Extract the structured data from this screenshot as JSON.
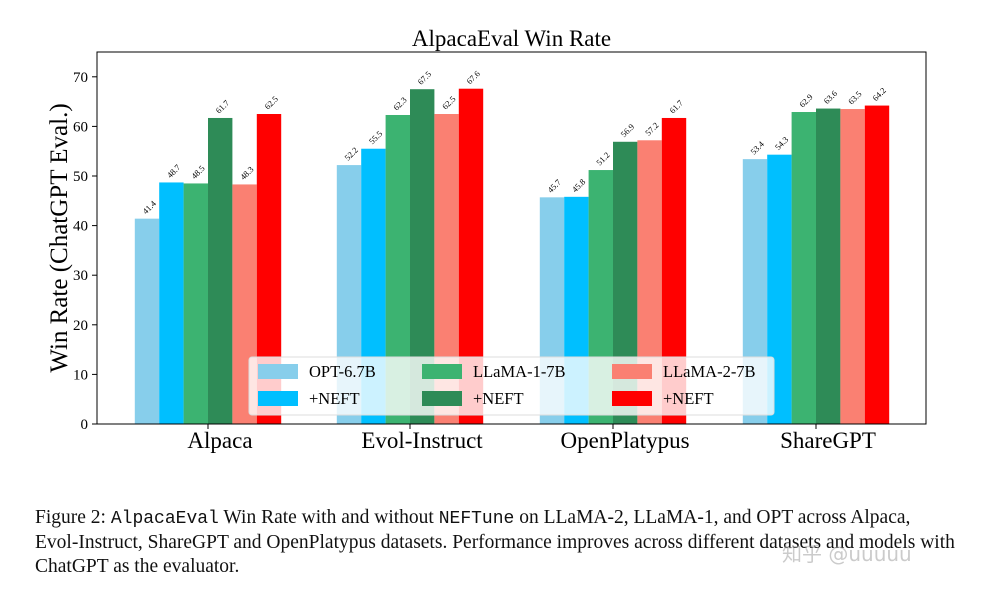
{
  "chart_data": {
    "type": "bar",
    "title": "AlpacaEval Win Rate",
    "xlabel": "",
    "ylabel": "Win Rate (ChatGPT Eval.)",
    "ylim": [
      0,
      75
    ],
    "yticks": [
      0,
      10,
      20,
      30,
      40,
      50,
      60,
      70
    ],
    "categories": [
      "Alpaca",
      "Evol-Instruct",
      "OpenPlatypus",
      "ShareGPT"
    ],
    "series": [
      {
        "name": "OPT-6.7B",
        "color": "#87ceeb",
        "values": [
          41.4,
          52.2,
          45.7,
          53.4
        ]
      },
      {
        "name": "+NEFT",
        "color": "#00bfff",
        "values": [
          48.7,
          55.5,
          45.8,
          54.3
        ]
      },
      {
        "name": "LLaMA-1-7B",
        "color": "#3cb371",
        "values": [
          48.5,
          62.3,
          51.2,
          62.9
        ]
      },
      {
        "name": "+NEFT",
        "color": "#2e8b57",
        "values": [
          61.7,
          67.5,
          56.9,
          63.6
        ]
      },
      {
        "name": "LLaMA-2-7B",
        "color": "#fa8072",
        "values": [
          48.3,
          62.5,
          57.2,
          63.5
        ]
      },
      {
        "name": "+NEFT",
        "color": "#ff0000",
        "values": [
          62.5,
          67.6,
          61.7,
          64.2
        ]
      }
    ],
    "legend_position": "bottom-center"
  },
  "caption": {
    "prefix": "Figure 2: ",
    "code1": "AlpacaEval",
    "mid1": " Win Rate with and without ",
    "code2": "NEFTune",
    "rest": " on LLaMA-2, LLaMA-1, and OPT across Alpaca, Evol-Instruct, ShareGPT and OpenPlatypus datasets. Performance improves across different datasets and models with ChatGPT as the evaluator."
  },
  "watermark": "知乎 @uuuuu"
}
